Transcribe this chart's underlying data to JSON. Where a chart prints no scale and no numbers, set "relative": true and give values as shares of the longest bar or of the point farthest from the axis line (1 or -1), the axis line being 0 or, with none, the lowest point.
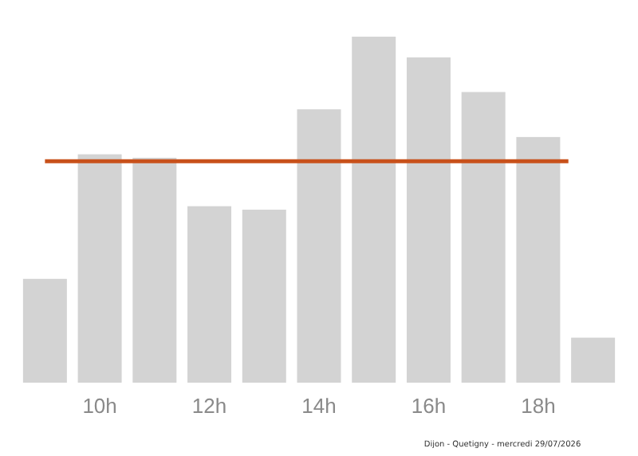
{
  "chart_data": {
    "type": "bar",
    "relative": true,
    "categories": [
      null,
      "10h",
      null,
      "12h",
      null,
      "14h",
      null,
      "16h",
      null,
      "18h",
      null
    ],
    "values": [
      0.3,
      0.66,
      0.65,
      0.51,
      0.5,
      0.79,
      1,
      0.94,
      0.84,
      0.71,
      0.13
    ],
    "color": "#d3d3d3",
    "ref_lines": [
      {
        "axis": "y",
        "value": 0.64,
        "color": "#c8511b",
        "line_style": "solid"
      }
    ],
    "annotations": [
      "Dijon - Quetigny - mercredi 29/07/2026"
    ],
    "grid": false
  }
}
